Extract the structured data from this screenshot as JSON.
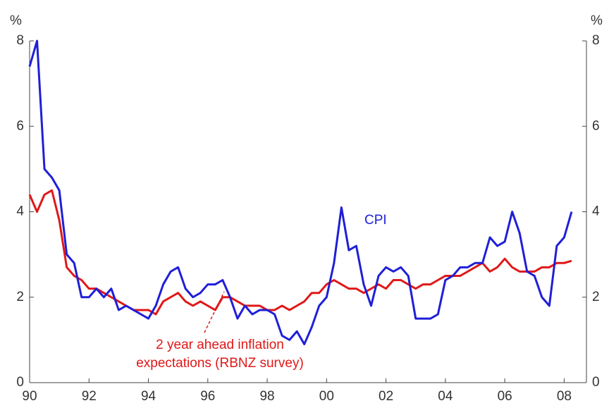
{
  "chart_data": {
    "type": "line",
    "y_unit_left": "%",
    "y_unit_right": "%",
    "x": [
      1990,
      1990.25,
      1990.5,
      1990.75,
      1991,
      1991.25,
      1991.5,
      1991.75,
      1992,
      1992.25,
      1992.5,
      1992.75,
      1993,
      1993.25,
      1993.5,
      1993.75,
      1994,
      1994.25,
      1994.5,
      1994.75,
      1995,
      1995.25,
      1995.5,
      1995.75,
      1996,
      1996.25,
      1996.5,
      1996.75,
      1997,
      1997.25,
      1997.5,
      1997.75,
      1998,
      1998.25,
      1998.5,
      1998.75,
      1999,
      1999.25,
      1999.5,
      1999.75,
      2000,
      2000.25,
      2000.5,
      2000.75,
      2001,
      2001.25,
      2001.5,
      2001.75,
      2002,
      2002.25,
      2002.5,
      2002.75,
      2003,
      2003.25,
      2003.5,
      2003.75,
      2004,
      2004.25,
      2004.5,
      2004.75,
      2005,
      2005.25,
      2005.5,
      2005.75,
      2006,
      2006.25,
      2006.5,
      2006.75,
      2007,
      2007.25,
      2007.5,
      2007.75,
      2008,
      2008.25
    ],
    "series": [
      {
        "name": "CPI",
        "color": "#1f1fd8",
        "values": [
          7.4,
          8.0,
          5.0,
          4.8,
          4.5,
          3.0,
          2.8,
          2.0,
          2.0,
          2.2,
          2.0,
          2.2,
          1.7,
          1.8,
          1.7,
          1.6,
          1.5,
          1.8,
          2.3,
          2.6,
          2.7,
          2.2,
          2.0,
          2.1,
          2.3,
          2.3,
          2.4,
          2.0,
          1.5,
          1.8,
          1.6,
          1.7,
          1.7,
          1.6,
          1.1,
          1.0,
          1.2,
          0.9,
          1.3,
          1.8,
          2.0,
          2.8,
          4.1,
          3.1,
          3.2,
          2.3,
          1.8,
          2.5,
          2.7,
          2.6,
          2.7,
          2.5,
          1.5,
          1.5,
          1.5,
          1.6,
          2.4,
          2.5,
          2.7,
          2.7,
          2.8,
          2.8,
          3.4,
          3.2,
          3.3,
          4.0,
          3.5,
          2.6,
          2.5,
          2.0,
          1.8,
          3.2,
          3.4,
          4.0
        ]
      },
      {
        "name": "2 year ahead  inflation expectations (RBNZ survey)",
        "color": "#e01818",
        "values": [
          4.4,
          4.0,
          4.4,
          4.5,
          3.8,
          2.7,
          2.5,
          2.4,
          2.2,
          2.2,
          2.1,
          2.0,
          1.9,
          1.8,
          1.7,
          1.7,
          1.7,
          1.6,
          1.9,
          2.0,
          2.1,
          1.9,
          1.8,
          1.9,
          1.8,
          1.7,
          2.0,
          2.0,
          1.9,
          1.8,
          1.8,
          1.8,
          1.7,
          1.7,
          1.8,
          1.7,
          1.8,
          1.9,
          2.1,
          2.1,
          2.3,
          2.4,
          2.3,
          2.2,
          2.2,
          2.1,
          2.2,
          2.3,
          2.2,
          2.4,
          2.4,
          2.3,
          2.2,
          2.3,
          2.3,
          2.4,
          2.5,
          2.5,
          2.5,
          2.6,
          2.7,
          2.8,
          2.6,
          2.7,
          2.9,
          2.7,
          2.6,
          2.6,
          2.6,
          2.7,
          2.7,
          2.8,
          2.8,
          2.85
        ]
      }
    ],
    "annotations": [
      {
        "text": "CPI"
      },
      {
        "text": "2 year ahead  inflation"
      },
      {
        "text": "expectations (RBNZ survey)"
      }
    ],
    "xlim": [
      1990,
      2008.75
    ],
    "xticks": [
      {
        "value": 1990,
        "label": "90"
      },
      {
        "value": 1992,
        "label": "92"
      },
      {
        "value": 1994,
        "label": "94"
      },
      {
        "value": 1996,
        "label": "96"
      },
      {
        "value": 1998,
        "label": "98"
      },
      {
        "value": 2000,
        "label": "00"
      },
      {
        "value": 2002,
        "label": "02"
      },
      {
        "value": 2004,
        "label": "04"
      },
      {
        "value": 2006,
        "label": "06"
      },
      {
        "value": 2008,
        "label": "08"
      }
    ],
    "ylim": [
      0,
      8
    ],
    "yticks": [
      0,
      2,
      4,
      6,
      8
    ],
    "y2lim": [
      0,
      8
    ],
    "y2ticks": [
      0,
      2,
      4,
      6,
      8
    ],
    "grid": false,
    "legend": false
  }
}
